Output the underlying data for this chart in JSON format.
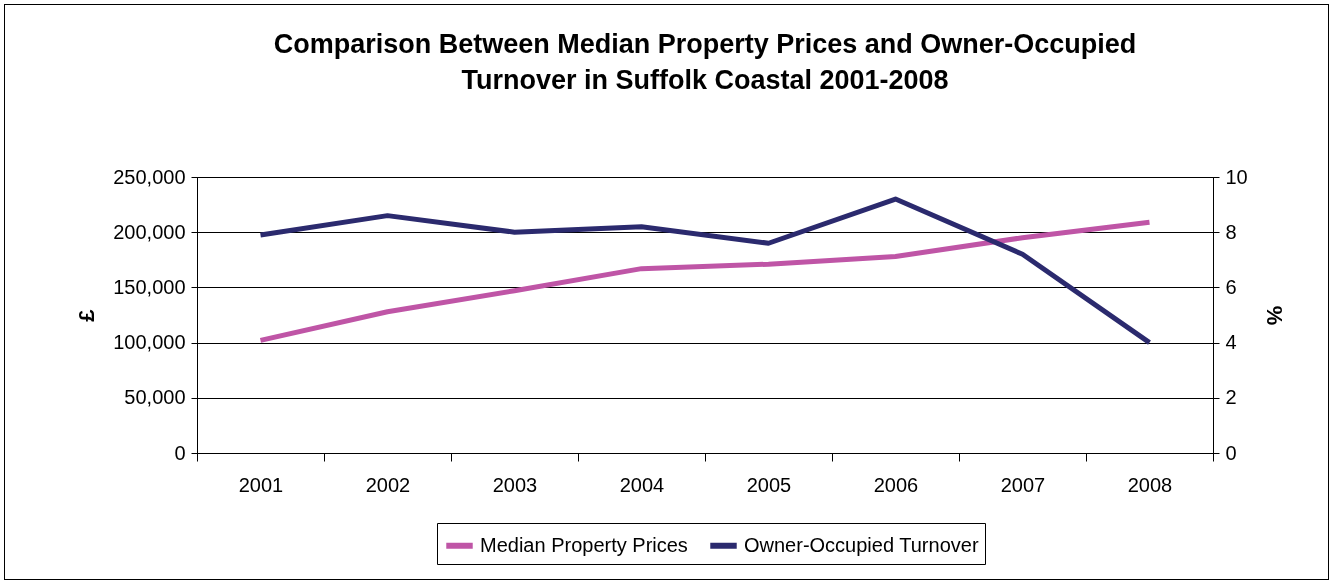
{
  "chart_data": {
    "type": "line",
    "title": "Comparison Between Median Property Prices and Owner-Occupied\nTurnover in Suffolk Coastal 2001-2008",
    "categories": [
      "2001",
      "2002",
      "2003",
      "2004",
      "2005",
      "2006",
      "2007",
      "2008"
    ],
    "ylabel": "£",
    "y2label": "%",
    "series": [
      {
        "name": "Median Property Prices",
        "color": "#bf55a6",
        "values": [
          102000,
          128000,
          147000,
          167000,
          171000,
          178000,
          195000,
          209000
        ]
      },
      {
        "name": "Owner-Occupied Turnover",
        "color": "#2b2a6e",
        "axis": "y2",
        "values": [
          7.9,
          8.6,
          8.0,
          8.2,
          7.6,
          9.2,
          7.2,
          4.0
        ]
      }
    ],
    "ylim": [
      0,
      250000
    ],
    "yticks": [
      0,
      {
        "value": 50000,
        "label": "50,000"
      },
      {
        "value": 100000,
        "label": "100,000"
      },
      {
        "value": 150000,
        "label": "150,000"
      },
      {
        "value": 200000,
        "label": "200,000"
      },
      {
        "value": 250000,
        "label": "250,000"
      }
    ],
    "y2lim": [
      0,
      10
    ],
    "y2ticks": [
      0,
      2,
      4,
      6,
      8,
      10
    ],
    "grid": "y",
    "legend": "bottom",
    "marker": "none",
    "line_style": "solid"
  }
}
